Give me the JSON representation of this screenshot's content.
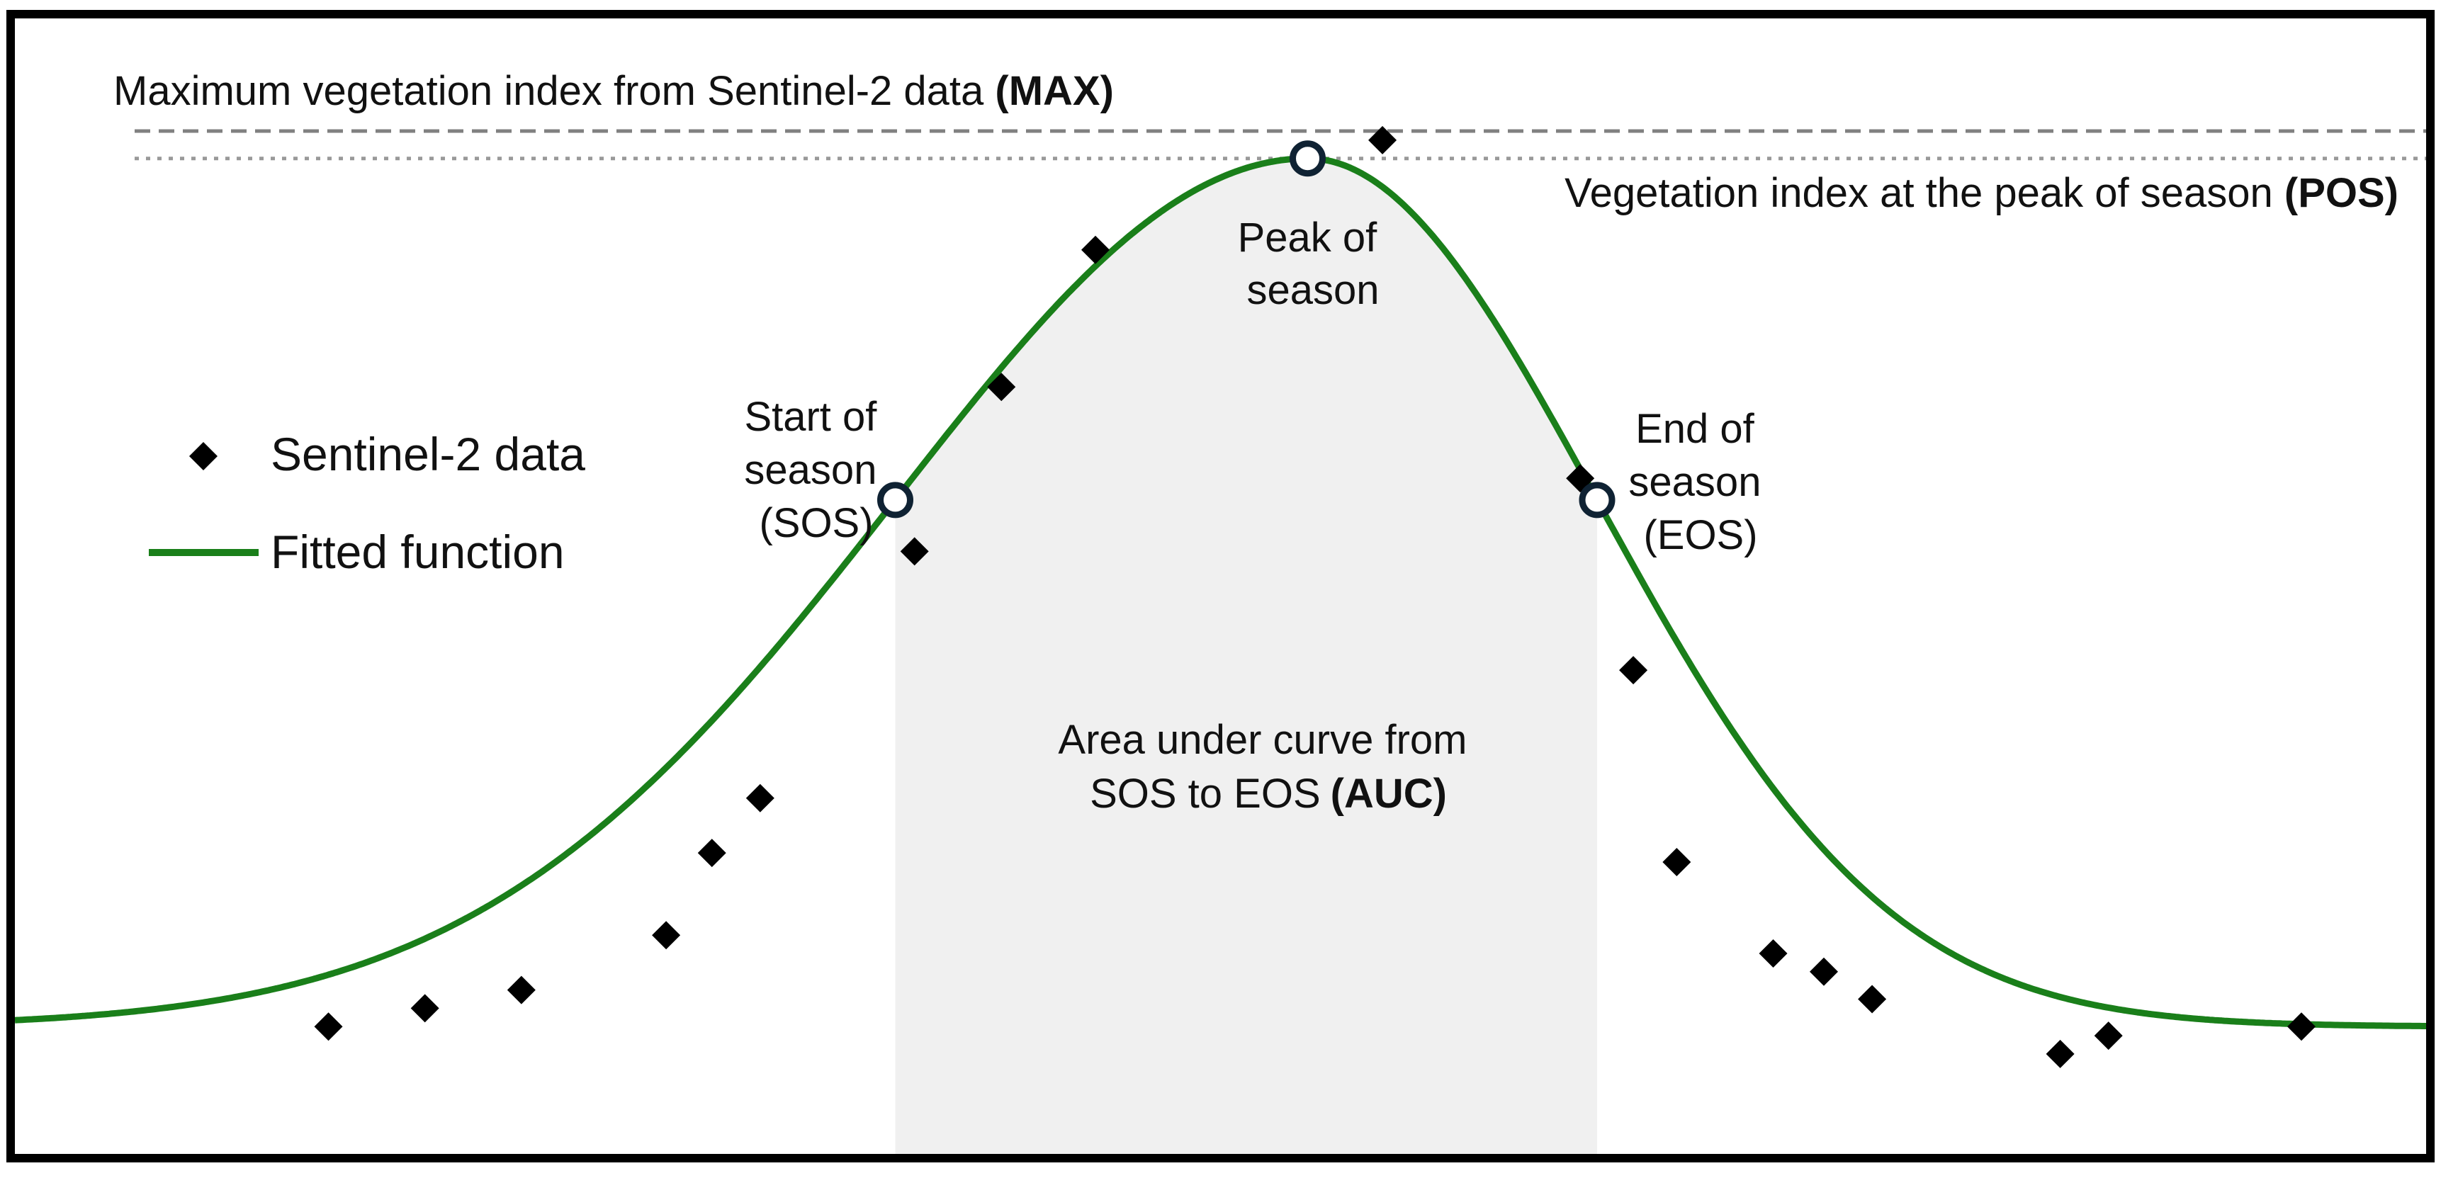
{
  "labels": {
    "max_text": "Maximum vegetation index from Sentinel-2 data",
    "max_abbr": "(MAX)",
    "pos_text": "Vegetation index at the peak of season",
    "pos_abbr": "(POS)",
    "peak_line1": "Peak of",
    "peak_line2": "season",
    "sos_line1": "Start of",
    "sos_line2": "season",
    "sos_line3": "(SOS)",
    "eos_line1": "End of",
    "eos_line2": "season",
    "eos_line3": "(EOS)",
    "auc_line1": "Area under curve from",
    "auc_line2": "SOS to EOS",
    "auc_abbr": "(AUC)"
  },
  "legend": {
    "points_label": "Sentinel-2 data",
    "curve_label": "Fitted function"
  },
  "colors": {
    "curve": "#1a7f1a",
    "points": "#000000",
    "auc_fill": "#f0f0f0",
    "marker_stroke": "#0f2233",
    "frame": "#000000",
    "max_line": "#808080",
    "pos_line": "#999999"
  },
  "chart_data": {
    "type": "scatter",
    "xlim": [
      0,
      100
    ],
    "ylim": [
      0,
      1
    ],
    "curve": {
      "base": 0.02,
      "amplitude": 0.95,
      "sos": 36.5,
      "pos": 53.6,
      "eos": 65.6
    },
    "max_value": 1.0,
    "pos_value": 0.97,
    "sentinel2_points": [
      {
        "x": 13.0,
        "y": 0.02
      },
      {
        "x": 17.0,
        "y": 0.04
      },
      {
        "x": 21.0,
        "y": 0.06
      },
      {
        "x": 27.0,
        "y": 0.12
      },
      {
        "x": 28.9,
        "y": 0.21
      },
      {
        "x": 30.9,
        "y": 0.27
      },
      {
        "x": 37.3,
        "y": 0.54
      },
      {
        "x": 40.9,
        "y": 0.72
      },
      {
        "x": 44.8,
        "y": 0.87
      },
      {
        "x": 56.7,
        "y": 0.99
      },
      {
        "x": 64.9,
        "y": 0.62
      },
      {
        "x": 67.1,
        "y": 0.41
      },
      {
        "x": 68.9,
        "y": 0.2
      },
      {
        "x": 72.9,
        "y": 0.1
      },
      {
        "x": 75.0,
        "y": 0.08
      },
      {
        "x": 77.0,
        "y": 0.05
      },
      {
        "x": 84.8,
        "y": -0.01
      },
      {
        "x": 86.8,
        "y": 0.01
      },
      {
        "x": 94.8,
        "y": 0.02
      }
    ]
  }
}
